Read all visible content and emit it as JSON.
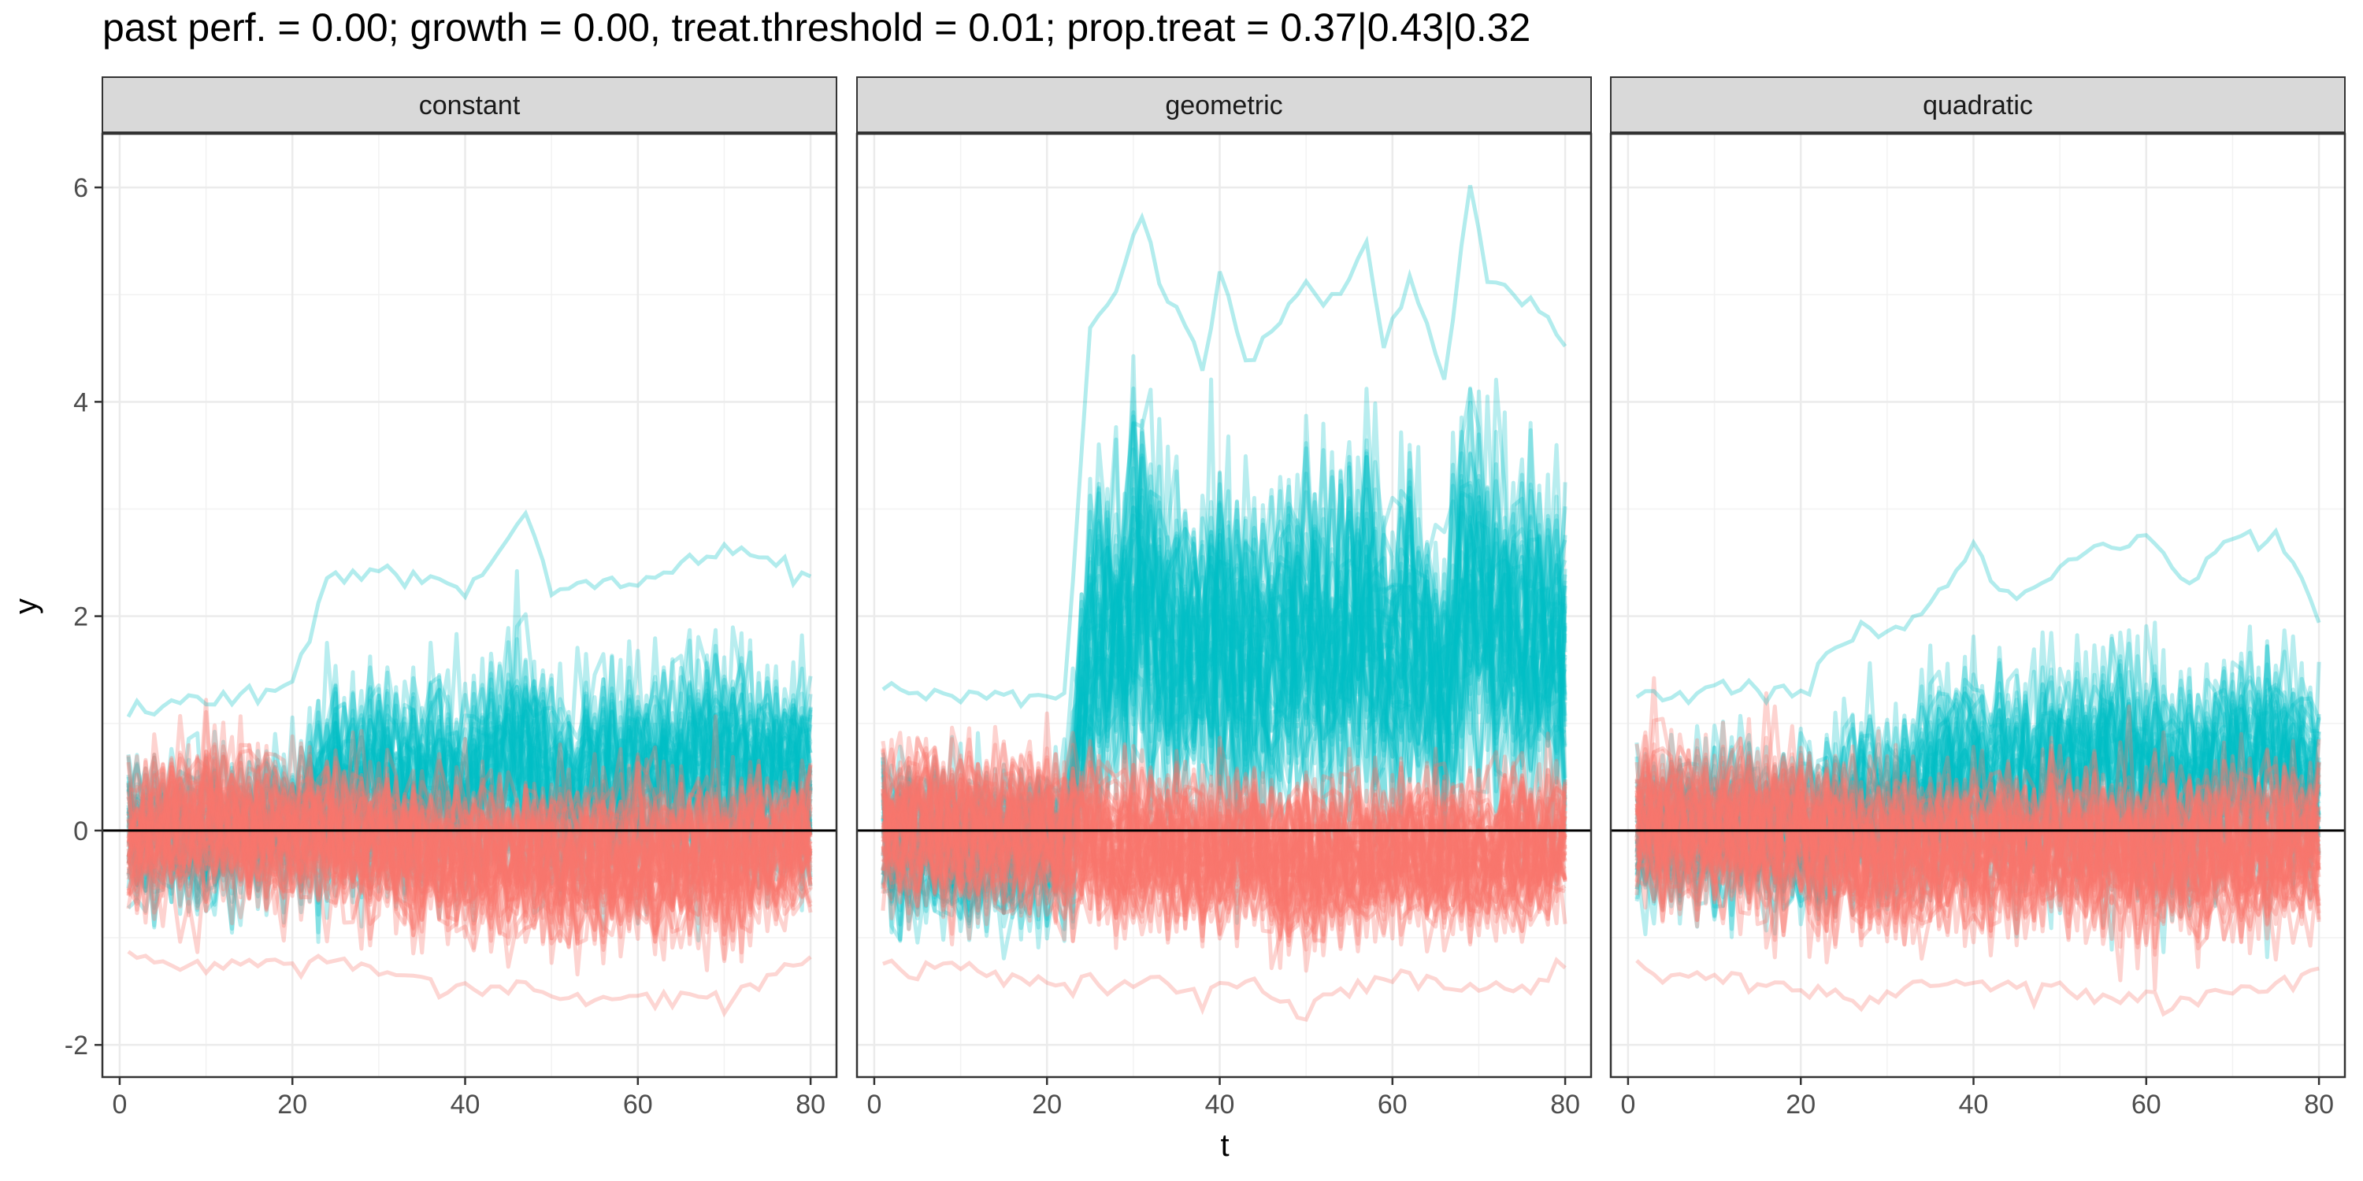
{
  "chart_data": {
    "type": "line",
    "title": "past perf. = 0.00; growth = 0.00,  treat.threshold = 0.01;  prop.treat = 0.37|0.43|0.32",
    "xlabel": "t",
    "ylabel": "y",
    "xlim": [
      -2,
      83
    ],
    "ylim": [
      -2.3,
      6.5
    ],
    "x_ticks": [
      0,
      20,
      40,
      60,
      80
    ],
    "y_ticks": [
      -2,
      0,
      2,
      4,
      6
    ],
    "grid": true,
    "reference_line_y": 0,
    "panels": [
      {
        "label": "constant",
        "x": [
          1,
          10,
          20,
          24,
          30,
          40,
          47,
          50,
          60,
          70,
          80
        ],
        "treated_max": [
          1.2,
          1.3,
          1.4,
          2.4,
          2.5,
          2.3,
          3.0,
          2.3,
          2.4,
          2.7,
          2.5
        ],
        "treated_min": [
          -1.2,
          -1.4,
          -1.3,
          -1.7,
          -1.6,
          -1.4,
          -1.5,
          -1.5,
          -1.5,
          -1.4,
          -1.4
        ],
        "control_max": [
          1.2,
          1.7,
          1.3,
          1.2,
          1.2,
          1.2,
          1.2,
          1.2,
          1.2,
          1.2,
          1.2
        ],
        "control_min": [
          -1.3,
          -1.4,
          -1.4,
          -1.3,
          -1.5,
          -1.6,
          -1.6,
          -1.7,
          -1.7,
          -1.7,
          -1.3
        ]
      },
      {
        "label": "geometric",
        "x": [
          1,
          10,
          22,
          25,
          28,
          31,
          33,
          35,
          38,
          40,
          43,
          50,
          52,
          57,
          59,
          62,
          66,
          69,
          71,
          76,
          80
        ],
        "treated_max": [
          1.4,
          1.3,
          1.3,
          4.7,
          5.1,
          5.8,
          5.2,
          4.9,
          4.4,
          5.3,
          4.4,
          5.2,
          4.9,
          5.5,
          4.6,
          5.2,
          4.3,
          6.1,
          5.2,
          5.0,
          4.6
        ],
        "treated_min": [
          -1.6,
          -1.6,
          -1.6,
          -1.5,
          -1.4,
          -1.4,
          -1.4,
          -1.5,
          -1.5,
          -1.6,
          -1.4,
          -1.4,
          -1.5,
          -1.5,
          -1.4,
          -1.5,
          -1.5,
          -1.6,
          -1.4,
          -1.5,
          -1.3
        ],
        "control_max": [
          1.5,
          1.5,
          1.6,
          1.4,
          1.3,
          1.3,
          1.3,
          1.3,
          1.2,
          1.2,
          1.2,
          1.2,
          1.2,
          1.2,
          1.2,
          1.2,
          1.2,
          1.2,
          1.2,
          1.2,
          1.1
        ],
        "control_min": [
          -1.4,
          -1.4,
          -1.6,
          -1.5,
          -1.6,
          -1.6,
          -1.5,
          -1.6,
          -1.7,
          -1.6,
          -1.5,
          -1.9,
          -1.6,
          -1.6,
          -1.5,
          -1.5,
          -1.6,
          -1.6,
          -1.6,
          -1.6,
          -1.3
        ]
      },
      {
        "label": "quadratic",
        "x": [
          1,
          10,
          20,
          27,
          32,
          40,
          45,
          50,
          55,
          60,
          65,
          70,
          75,
          80
        ],
        "treated_max": [
          1.3,
          1.4,
          1.4,
          2.0,
          1.9,
          2.7,
          2.2,
          2.5,
          2.7,
          2.8,
          2.4,
          2.8,
          2.8,
          2.1
        ],
        "treated_min": [
          -1.4,
          -1.4,
          -1.5,
          -1.5,
          -1.5,
          -1.5,
          -1.5,
          -1.5,
          -1.6,
          -1.9,
          -1.6,
          -1.5,
          -1.5,
          -1.2
        ],
        "control_max": [
          1.6,
          1.5,
          1.5,
          1.3,
          1.3,
          1.3,
          1.3,
          1.3,
          1.3,
          1.3,
          1.3,
          1.3,
          1.3,
          1.3
        ],
        "control_min": [
          -1.4,
          -1.5,
          -1.6,
          -1.7,
          -1.6,
          -1.6,
          -1.6,
          -1.6,
          -1.7,
          -1.7,
          -1.7,
          -1.6,
          -1.6,
          -1.4
        ]
      }
    ],
    "series_colors": {
      "treated": "#00BFC4",
      "control": "#F8766D"
    }
  }
}
